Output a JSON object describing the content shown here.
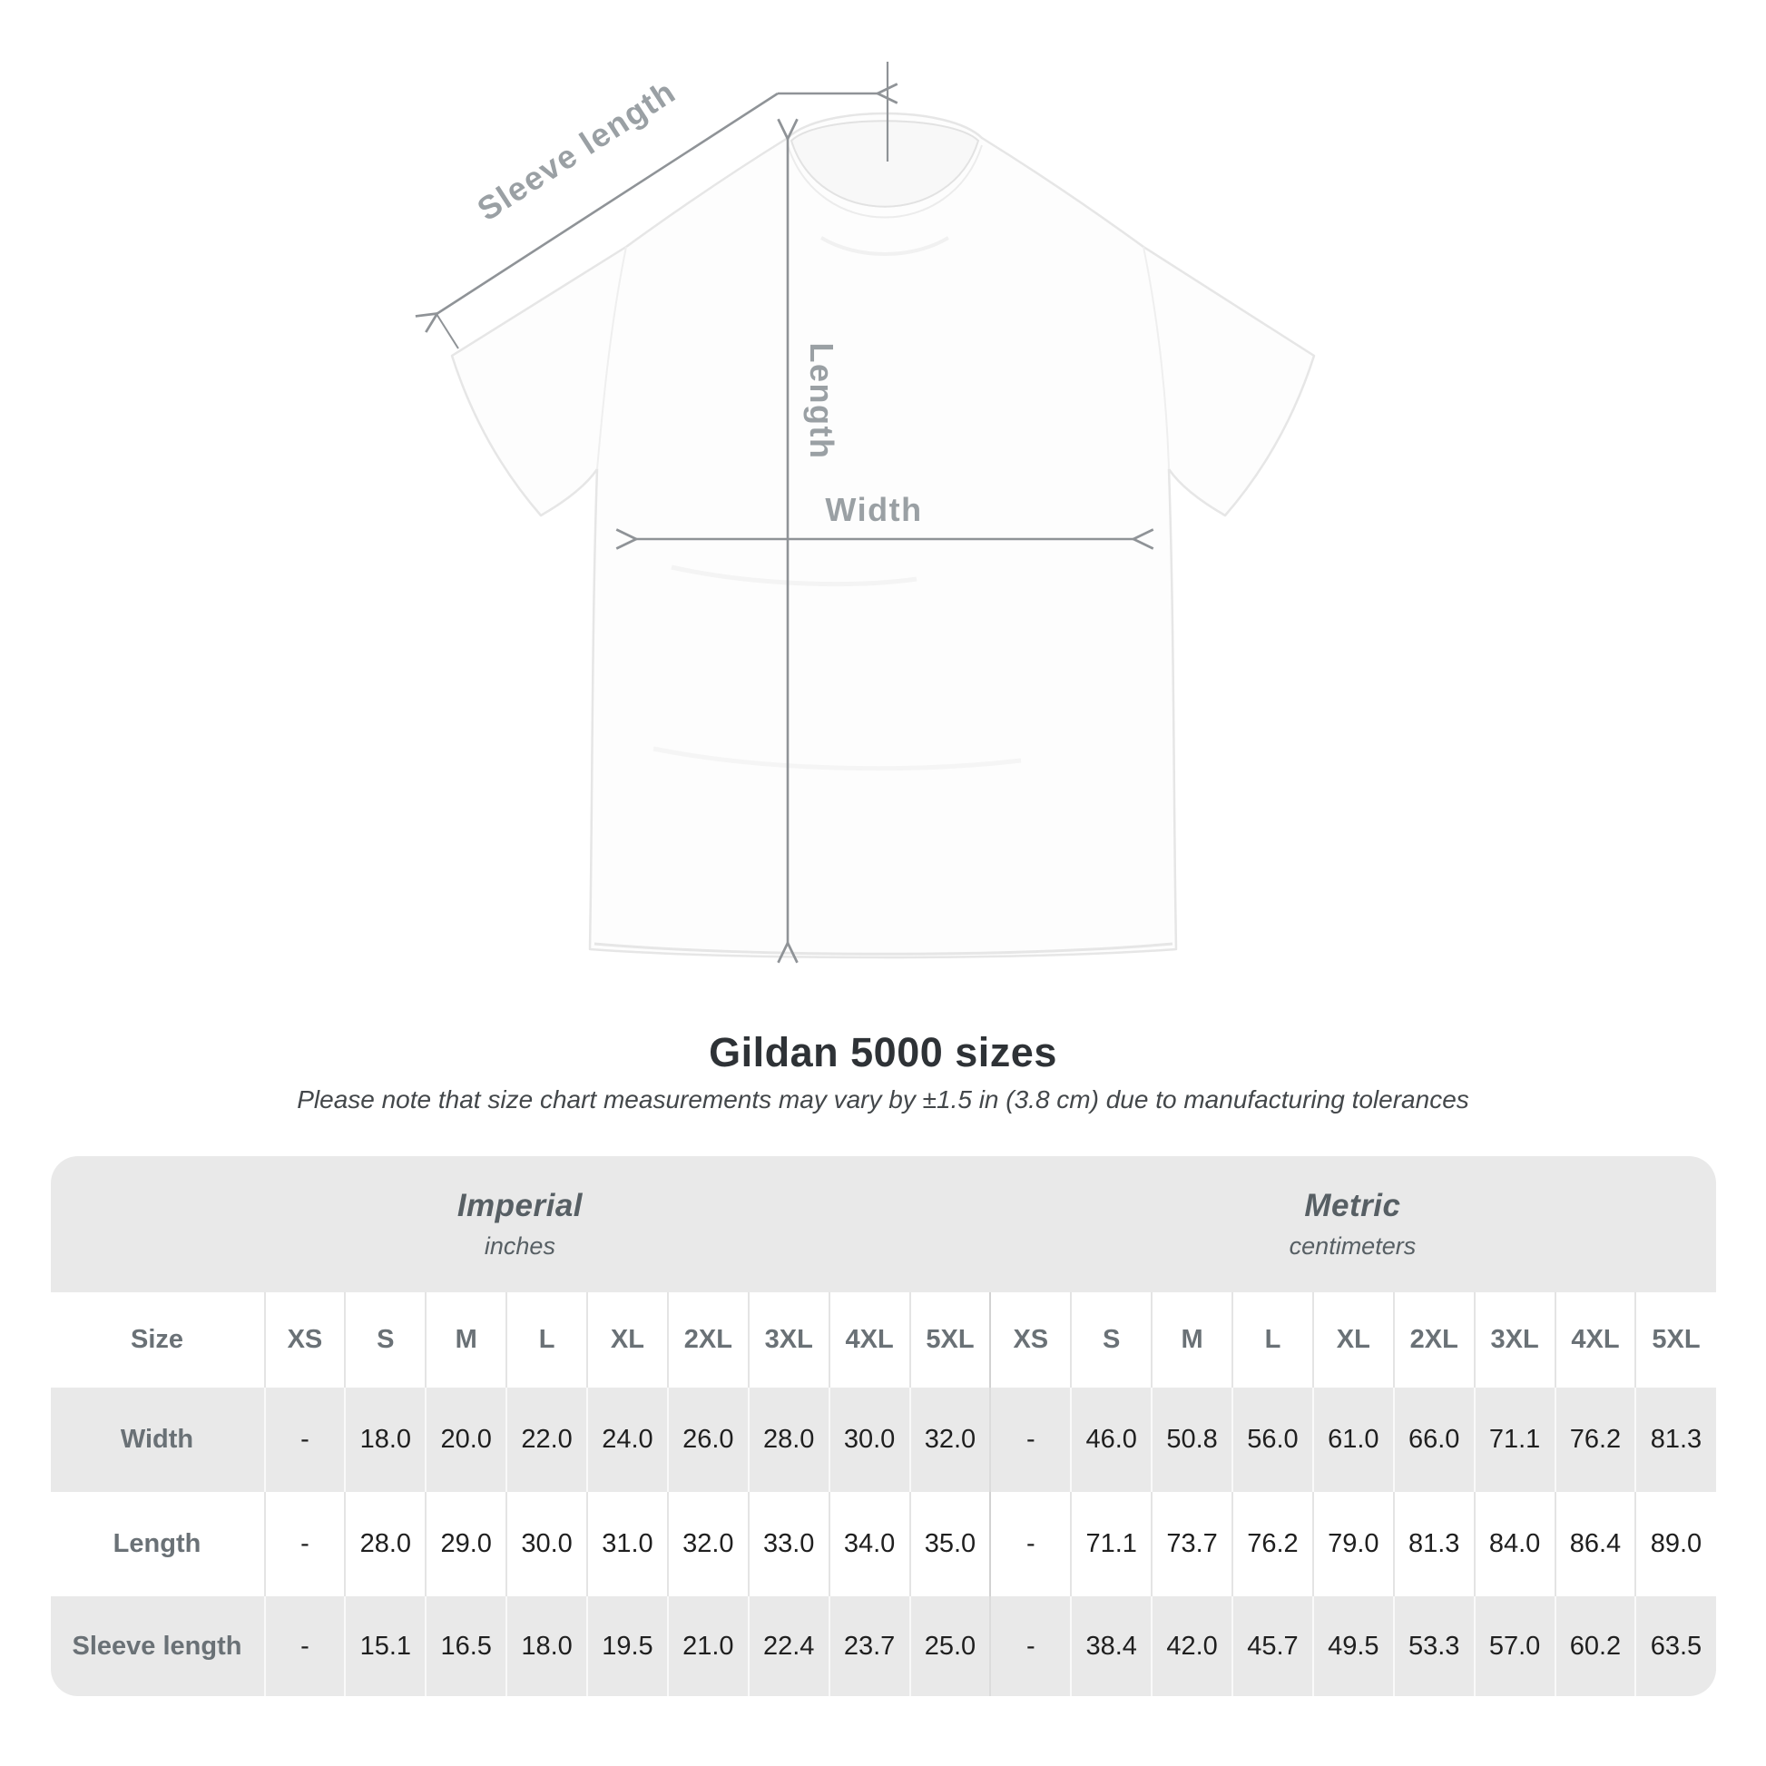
{
  "title": "Gildan 5000 sizes",
  "subtitle": "Please note that size chart measurements may vary by ±1.5 in (3.8 cm) due to manufacturing tolerances",
  "diagram": {
    "sleeve_length_label": "Sleeve length",
    "length_label": "Length",
    "width_label": "Width",
    "arrow_color": "#8f9397",
    "label_color": "#9aa0a4",
    "shirt_fill": "#fdfdfd",
    "shirt_outline": "#e6e6e6"
  },
  "chart_data": {
    "type": "table",
    "title": "Gildan 5000 sizes",
    "note": "Measurements may vary by ±1.5 in (3.8 cm) due to manufacturing tolerances",
    "corner_label": "Size",
    "groups": [
      {
        "label": "Imperial",
        "unit": "inches"
      },
      {
        "label": "Metric",
        "unit": "centimeters"
      }
    ],
    "sizes": [
      "XS",
      "S",
      "M",
      "L",
      "XL",
      "2XL",
      "3XL",
      "4XL",
      "5XL"
    ],
    "rows": [
      {
        "label": "Width",
        "imperial": [
          "-",
          "18.0",
          "20.0",
          "22.0",
          "24.0",
          "26.0",
          "28.0",
          "30.0",
          "32.0"
        ],
        "metric": [
          "-",
          "46.0",
          "50.8",
          "56.0",
          "61.0",
          "66.0",
          "71.1",
          "76.2",
          "81.3"
        ]
      },
      {
        "label": "Length",
        "imperial": [
          "-",
          "28.0",
          "29.0",
          "30.0",
          "31.0",
          "32.0",
          "33.0",
          "34.0",
          "35.0"
        ],
        "metric": [
          "-",
          "71.1",
          "73.7",
          "76.2",
          "79.0",
          "81.3",
          "84.0",
          "86.4",
          "89.0"
        ]
      },
      {
        "label": "Sleeve length",
        "imperial": [
          "-",
          "15.1",
          "16.5",
          "18.0",
          "19.5",
          "21.0",
          "22.4",
          "23.7",
          "25.0"
        ],
        "metric": [
          "-",
          "38.4",
          "42.0",
          "45.7",
          "49.5",
          "53.3",
          "57.0",
          "60.2",
          "63.5"
        ]
      }
    ],
    "table_colors": {
      "band_gray": "#e9e9e9",
      "band_white": "#ffffff",
      "header_text": "#6a7176",
      "value_text": "#1f1f1f"
    }
  }
}
